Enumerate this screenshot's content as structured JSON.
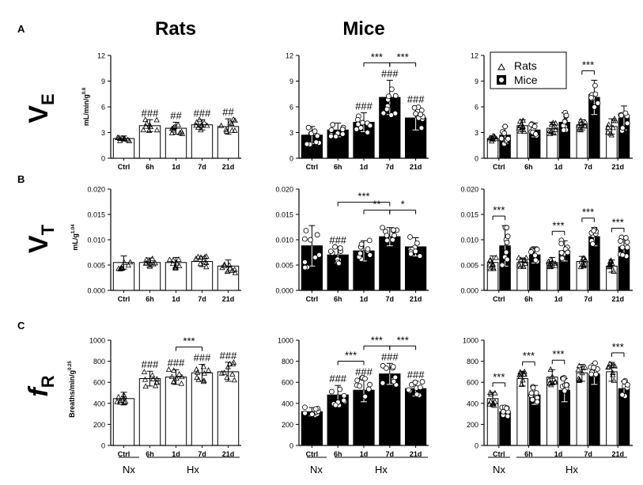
{
  "panel_letters": [
    "A",
    "B",
    "C"
  ],
  "column_titles": [
    "Rats",
    "Mice"
  ],
  "row_labels": [
    {
      "main": "V",
      "sub": "E"
    },
    {
      "main": "V",
      "sub": "T"
    },
    {
      "main": "f",
      "sub": "R"
    }
  ],
  "y_units": [
    {
      "base": "mL/min/g",
      "exp": "0.8"
    },
    {
      "base": "mL/g",
      "exp": "1.04"
    },
    {
      "base": "Breaths/min/g",
      "exp": "0.25"
    }
  ],
  "legend": {
    "rats": "Rats",
    "mice": "Mice"
  },
  "groups": {
    "nx": "Nx",
    "hx": "Hx"
  },
  "colors": {
    "rats_bar": "#ffffff",
    "mice_bar": "#000000",
    "axis": "#000000"
  },
  "chart_data": [
    {
      "type": "bar",
      "id": "A-rats",
      "categories": [
        "Ctrl",
        "6h",
        "1d",
        "7d",
        "21d"
      ],
      "values": [
        2.3,
        3.8,
        3.5,
        3.9,
        3.7
      ],
      "errors": [
        0.3,
        0.7,
        0.7,
        0.6,
        0.9
      ],
      "ylim": [
        0,
        12
      ],
      "ticks": [
        "0",
        "3",
        "6",
        "9",
        "12"
      ],
      "annotations": [
        "",
        "###",
        "##",
        "###",
        "##"
      ],
      "brackets": []
    },
    {
      "type": "bar",
      "id": "A-mice",
      "categories": [
        "Ctrl",
        "6h",
        "1d",
        "7d",
        "21d"
      ],
      "values": [
        2.7,
        3.3,
        4.2,
        7.1,
        4.7
      ],
      "errors": [
        1.0,
        0.8,
        1.1,
        2.0,
        1.4
      ],
      "ylim": [
        0,
        12
      ],
      "ticks": [
        "0",
        "3",
        "6",
        "9",
        "12"
      ],
      "annotations": [
        "",
        "",
        "###",
        "###",
        "###"
      ],
      "brackets": [
        {
          "from": "1d",
          "to": "7d",
          "label": "***"
        },
        {
          "from": "7d",
          "to": "21d",
          "label": "***"
        }
      ]
    },
    {
      "type": "bar",
      "id": "A-compare",
      "categories": [
        "Ctrl",
        "6h",
        "1d",
        "7d",
        "21d"
      ],
      "series": [
        {
          "name": "Rats",
          "values": [
            2.3,
            3.8,
            3.5,
            3.9,
            3.7
          ],
          "errors": [
            0.3,
            0.7,
            0.7,
            0.6,
            0.9
          ]
        },
        {
          "name": "Mice",
          "values": [
            2.7,
            3.3,
            4.2,
            7.1,
            4.7
          ],
          "errors": [
            1.0,
            0.8,
            1.1,
            2.0,
            1.4
          ]
        }
      ],
      "ylim": [
        0,
        12
      ],
      "ticks": [
        "0",
        "3",
        "6",
        "9",
        "12"
      ],
      "brackets": [
        {
          "category": "7d",
          "label": "***"
        }
      ],
      "legend": "top-left"
    },
    {
      "type": "bar",
      "id": "B-rats",
      "categories": [
        "Ctrl",
        "6h",
        "1d",
        "7d",
        "21d"
      ],
      "values": [
        0.0055,
        0.0055,
        0.0055,
        0.0057,
        0.0048
      ],
      "errors": [
        0.0013,
        0.0009,
        0.001,
        0.001,
        0.0012
      ],
      "ylim": [
        0,
        0.02
      ],
      "ticks": [
        "0.000",
        "0.005",
        "0.010",
        "0.015",
        "0.020"
      ],
      "annotations": [
        "",
        "",
        "",
        "",
        ""
      ],
      "brackets": []
    },
    {
      "type": "bar",
      "id": "B-mice",
      "categories": [
        "Ctrl",
        "6h",
        "1d",
        "7d",
        "21d"
      ],
      "values": [
        0.0088,
        0.007,
        0.0078,
        0.0106,
        0.0086
      ],
      "errors": [
        0.004,
        0.0016,
        0.002,
        0.0018,
        0.0018
      ],
      "ylim": [
        0,
        0.02
      ],
      "ticks": [
        "0.000",
        "0.005",
        "0.010",
        "0.015",
        "0.020"
      ],
      "annotations": [
        "",
        "###",
        "",
        "",
        ""
      ],
      "brackets": [
        {
          "from": "6h",
          "to": "7d",
          "label": "***"
        },
        {
          "from": "1d",
          "to": "7d",
          "label": "**"
        },
        {
          "from": "7d",
          "to": "21d",
          "label": "*"
        }
      ]
    },
    {
      "type": "bar",
      "id": "B-compare",
      "categories": [
        "Ctrl",
        "6h",
        "1d",
        "7d",
        "21d"
      ],
      "series": [
        {
          "name": "Rats",
          "values": [
            0.0055,
            0.0055,
            0.0055,
            0.0057,
            0.0048
          ],
          "errors": [
            0.0013,
            0.0009,
            0.001,
            0.001,
            0.0012
          ]
        },
        {
          "name": "Mice",
          "values": [
            0.0088,
            0.007,
            0.0078,
            0.0106,
            0.0086
          ],
          "errors": [
            0.004,
            0.0016,
            0.002,
            0.0018,
            0.0018
          ]
        }
      ],
      "ylim": [
        0,
        0.02
      ],
      "ticks": [
        "0.000",
        "0.005",
        "0.010",
        "0.015",
        "0.020"
      ],
      "brackets": [
        {
          "category": "Ctrl",
          "label": "***"
        },
        {
          "category": "1d",
          "label": "***"
        },
        {
          "category": "7d",
          "label": "***"
        },
        {
          "category": "21d",
          "label": "***"
        }
      ]
    },
    {
      "type": "bar",
      "id": "C-rats",
      "categories": [
        "Ctrl",
        "6h",
        "1d",
        "7d",
        "21d"
      ],
      "values": [
        445,
        635,
        650,
        690,
        700
      ],
      "errors": [
        60,
        70,
        70,
        80,
        90
      ],
      "ylim": [
        0,
        1000
      ],
      "ticks": [
        "0",
        "200",
        "400",
        "600",
        "800",
        "1000"
      ],
      "annotations": [
        "",
        "###",
        "###",
        "###",
        "###"
      ],
      "brackets": [
        {
          "from": "1d",
          "to": "7d",
          "label": "***"
        }
      ]
    },
    {
      "type": "bar",
      "id": "C-mice",
      "categories": [
        "Ctrl",
        "6h",
        "1d",
        "7d",
        "21d"
      ],
      "values": [
        320,
        480,
        525,
        680,
        540
      ],
      "errors": [
        40,
        90,
        110,
        100,
        70
      ],
      "ylim": [
        0,
        1000
      ],
      "ticks": [
        "0",
        "200",
        "400",
        "600",
        "800",
        "1000"
      ],
      "annotations": [
        "",
        "###",
        "###",
        "###",
        "###"
      ],
      "brackets": [
        {
          "from": "6h",
          "to": "1d",
          "label": "***"
        },
        {
          "from": "1d",
          "to": "7d",
          "label": "***"
        },
        {
          "from": "7d",
          "to": "21d",
          "label": "***"
        }
      ]
    },
    {
      "type": "bar",
      "id": "C-compare",
      "categories": [
        "Ctrl",
        "6h",
        "1d",
        "7d",
        "21d"
      ],
      "series": [
        {
          "name": "Rats",
          "values": [
            445,
            635,
            650,
            690,
            700
          ],
          "errors": [
            60,
            70,
            70,
            80,
            90
          ]
        },
        {
          "name": "Mice",
          "values": [
            320,
            480,
            525,
            680,
            540
          ],
          "errors": [
            40,
            90,
            110,
            100,
            70
          ]
        }
      ],
      "ylim": [
        0,
        1000
      ],
      "ticks": [
        "0",
        "200",
        "400",
        "600",
        "800",
        "1000"
      ],
      "brackets": [
        {
          "category": "Ctrl",
          "label": "***"
        },
        {
          "category": "6h",
          "label": "***"
        },
        {
          "category": "1d",
          "label": "***"
        },
        {
          "category": "21d",
          "label": "***"
        }
      ]
    }
  ]
}
